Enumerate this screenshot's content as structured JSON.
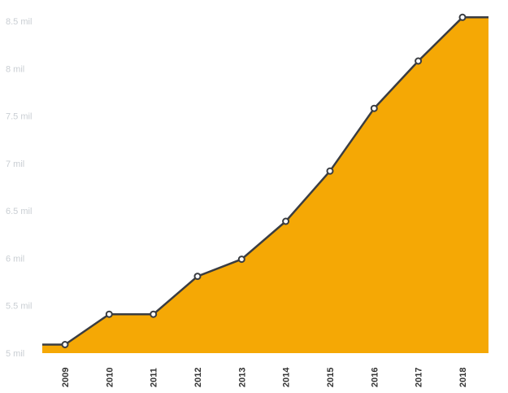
{
  "chart_data": {
    "type": "area",
    "categories": [
      "2009",
      "2010",
      "2011",
      "2012",
      "2013",
      "2014",
      "2015",
      "2016",
      "2017",
      "2018"
    ],
    "values": [
      5.09,
      5.41,
      5.41,
      5.81,
      5.99,
      6.39,
      6.92,
      7.58,
      8.08,
      8.54
    ],
    "yticks": [
      5,
      5.5,
      6,
      6.5,
      7,
      7.5,
      8,
      8.5
    ],
    "ytick_labels": [
      "5 mil",
      "5.5 mil",
      "6 mil",
      "6.5 mil",
      "7 mil",
      "7.5 mil",
      "8 mil",
      "8.5 mil"
    ],
    "ylim": [
      5,
      8.5
    ],
    "title": "",
    "xlabel": "",
    "ylabel": "",
    "grid": false,
    "legend": "none"
  },
  "colors": {
    "area_fill": "#f5a805",
    "line": "#3a3d42",
    "marker_fill": "#ffffff",
    "y_tick_text": "#c9ced3",
    "x_tick_text": "#333333"
  }
}
